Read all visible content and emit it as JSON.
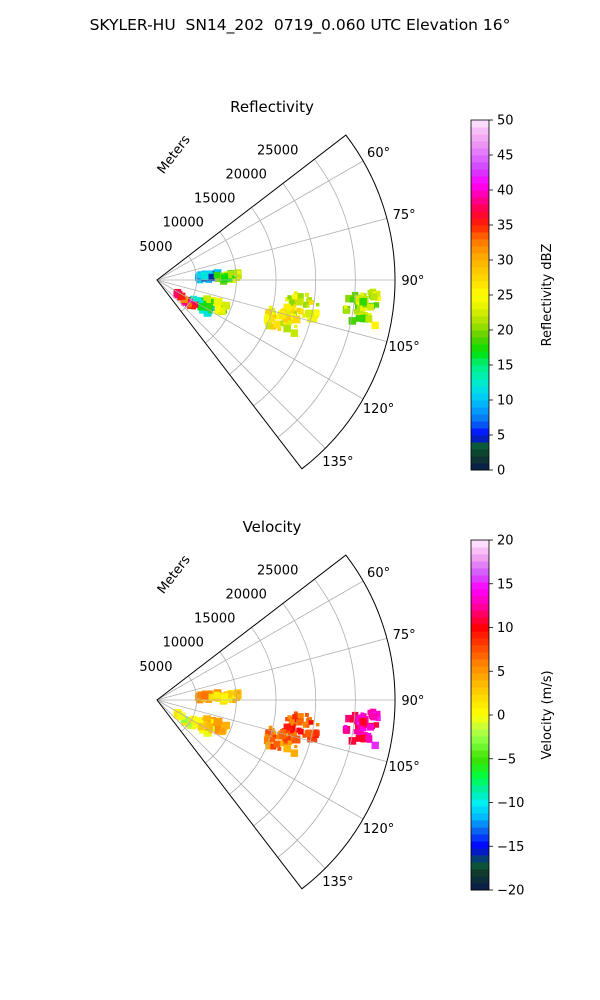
{
  "title": "SKYLER-HU  SN14_202  0719_0.060 UTC Elevation 16°",
  "colors": {
    "grid": "#b0b0b0",
    "frame": "#000000"
  },
  "chart_data": [
    {
      "type": "heatmap",
      "subtype": "polar-sector",
      "title": "Reflectivity",
      "radial_label": "Meters",
      "radial_ticks": [
        5000,
        10000,
        15000,
        20000,
        25000
      ],
      "theta_ticks": [
        "60°",
        "75°",
        "90°",
        "105°",
        "120°",
        "135°"
      ],
      "theta_range_deg": [
        52.5,
        142.5
      ],
      "r_max": 30000,
      "colorbar": {
        "label": "Reflectivity dBZ",
        "ticks": [
          0,
          5,
          10,
          15,
          20,
          25,
          30,
          35,
          40,
          45,
          50
        ],
        "range": [
          0,
          50
        ]
      },
      "blobs": [
        {
          "azimuth": 97.5,
          "range_m": 26000,
          "value": 22
        },
        {
          "azimuth": 100,
          "range_m": 18500,
          "value": 24
        },
        {
          "azimuth": 108,
          "range_m": 16500,
          "value": 25
        },
        {
          "azimuth": 113,
          "range_m": 8000,
          "value": 21
        },
        {
          "azimuth": 120,
          "range_m": 6500,
          "value": 14
        },
        {
          "azimuth": 125,
          "range_m": 4500,
          "value": 36
        },
        {
          "azimuth": 86,
          "range_m": 6500,
          "value": 8
        },
        {
          "azimuth": 88,
          "range_m": 9000,
          "value": 20
        }
      ]
    },
    {
      "type": "heatmap",
      "subtype": "polar-sector",
      "title": "Velocity",
      "radial_label": "Meters",
      "radial_ticks": [
        5000,
        10000,
        15000,
        20000,
        25000
      ],
      "theta_ticks": [
        "60°",
        "75°",
        "90°",
        "105°",
        "120°",
        "135°"
      ],
      "theta_range_deg": [
        52.5,
        142.5
      ],
      "r_max": 30000,
      "colorbar": {
        "label": "Velocity (m/s)",
        "ticks": [
          -20,
          -15,
          -10,
          -5,
          0,
          5,
          10,
          15,
          20
        ],
        "range": [
          -20,
          20
        ]
      },
      "blobs": [
        {
          "azimuth": 97.5,
          "range_m": 26000,
          "value": 13
        },
        {
          "azimuth": 100,
          "range_m": 18500,
          "value": 8
        },
        {
          "azimuth": 108,
          "range_m": 16500,
          "value": 6
        },
        {
          "azimuth": 113,
          "range_m": 8000,
          "value": 3
        },
        {
          "azimuth": 120,
          "range_m": 6500,
          "value": 1
        },
        {
          "azimuth": 125,
          "range_m": 4500,
          "value": 0
        },
        {
          "azimuth": 86,
          "range_m": 6500,
          "value": 4
        },
        {
          "azimuth": 88,
          "range_m": 9000,
          "value": 2
        }
      ]
    }
  ]
}
